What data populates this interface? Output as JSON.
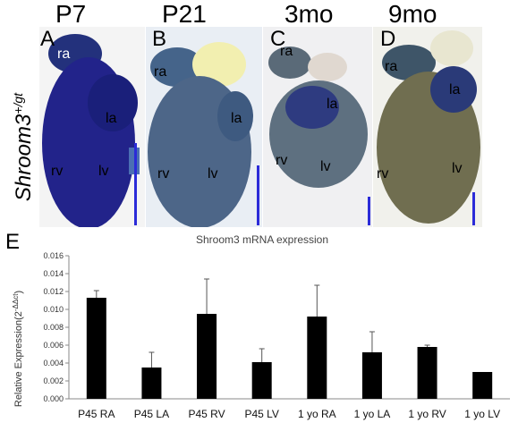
{
  "figure": {
    "ylabel_main": "Shroom3",
    "ylabel_sup": "+/gt",
    "panels": [
      {
        "letter": "A",
        "age": "P7",
        "labels": {
          "ra": "ra",
          "la": "la",
          "rv": "rv",
          "lv": "lv"
        }
      },
      {
        "letter": "B",
        "age": "P21",
        "labels": {
          "ra": "ra",
          "la": "la",
          "rv": "rv",
          "lv": "lv"
        }
      },
      {
        "letter": "C",
        "age": "3mo",
        "labels": {
          "ra": "ra",
          "la": "la",
          "rv": "rv",
          "lv": "lv"
        }
      },
      {
        "letter": "D",
        "age": "9mo",
        "labels": {
          "ra": "ra",
          "la": "la",
          "rv": "rv",
          "lv": "lv"
        }
      }
    ],
    "chart_letter": "E"
  },
  "chart_data": {
    "type": "bar",
    "title": "Shroom3 mRNA expression",
    "ylabel": "Relative Expression(2",
    "ylabel_sup": "-ΔΔct",
    "ylabel_close": ")",
    "ylim": [
      0,
      0.016
    ],
    "yticks": [
      "0.000",
      "0.002",
      "0.004",
      "0.006",
      "0.008",
      "0.010",
      "0.012",
      "0.014",
      "0.016"
    ],
    "categories": [
      "P45 RA",
      "P45 LA",
      "P45 RV",
      "P45 LV",
      "1 yo RA",
      "1 yo LA",
      "1 yo RV",
      "1 yo LV"
    ],
    "values": [
      0.0113,
      0.0035,
      0.0095,
      0.0041,
      0.0092,
      0.0052,
      0.0058,
      0.003
    ],
    "errors": [
      0.0008,
      0.0017,
      0.0039,
      0.0015,
      0.0035,
      0.0023,
      0.0002,
      0.0
    ],
    "grid": false,
    "colors": {
      "bar": "#000000",
      "panel_bg": "#f2f2f2",
      "heart_blue": "#2a2f8a",
      "scale": "#2b2bd8"
    }
  }
}
